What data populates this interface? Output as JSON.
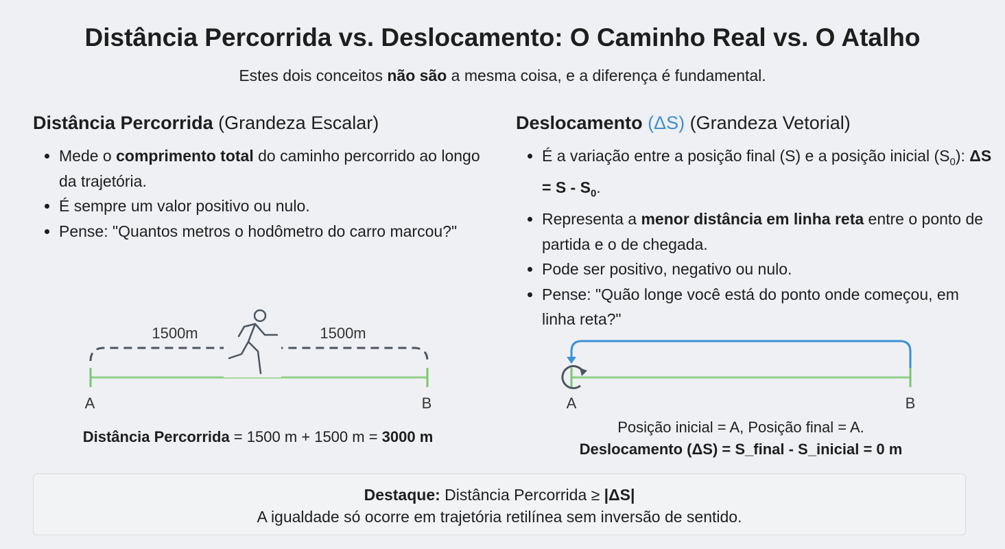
{
  "header": {
    "title": "Distância Percorrida vs. Deslocamento: O Caminho Real vs. O Atalho",
    "subtitle": [
      "Estes dois conceitos ",
      "não são",
      " a mesma coisa, e a diferença é fundamental."
    ]
  },
  "left": {
    "heading": [
      "Distância Percorrida",
      " (Grandeza Escalar)"
    ],
    "bullets": [
      [
        "Mede o ",
        "comprimento total",
        " do caminho percorrido ao longo da trajetória."
      ],
      [
        "É sempre um valor positivo ou nulo."
      ],
      [
        "Pense: \"Quantos metros o hodômetro do carro marcou?\""
      ]
    ],
    "diagram": {
      "segment_labels": [
        "1500m",
        "1500m"
      ],
      "start": "A",
      "end": "B"
    },
    "formula": [
      "Distância Percorrida",
      " = 1500 m + 1500 m = ",
      "3000 m"
    ]
  },
  "right": {
    "heading": [
      "Deslocamento ",
      "(ΔS)",
      " (Grandeza Vetorial)"
    ],
    "bullets": [
      [
        "É a variação entre a posição final (S) e a posição inicial (S",
        "0",
        "): ",
        "ΔS = S - S",
        "0",
        "."
      ],
      [
        "Representa a ",
        "menor distância em linha reta",
        " entre o ponto de partida e o de chegada."
      ],
      [
        "Pode ser positivo, negativo ou nulo."
      ],
      [
        "Pense: \"Quão longe você está do ponto onde começou, em linha reta?\""
      ]
    ],
    "diagram": {
      "start": "A",
      "end": "B"
    },
    "caption": [
      "Posição inicial = A, Posição final = A.",
      "Deslocamento (ΔS) = S_final - S_inicial = 0 m"
    ]
  },
  "highlight": {
    "line1": [
      "Destaque:",
      " Distância Percorrida ≥ ",
      "|ΔS|"
    ],
    "line2": "A igualdade só ocorre em trajetória retilínea sem inversão de sentido."
  }
}
